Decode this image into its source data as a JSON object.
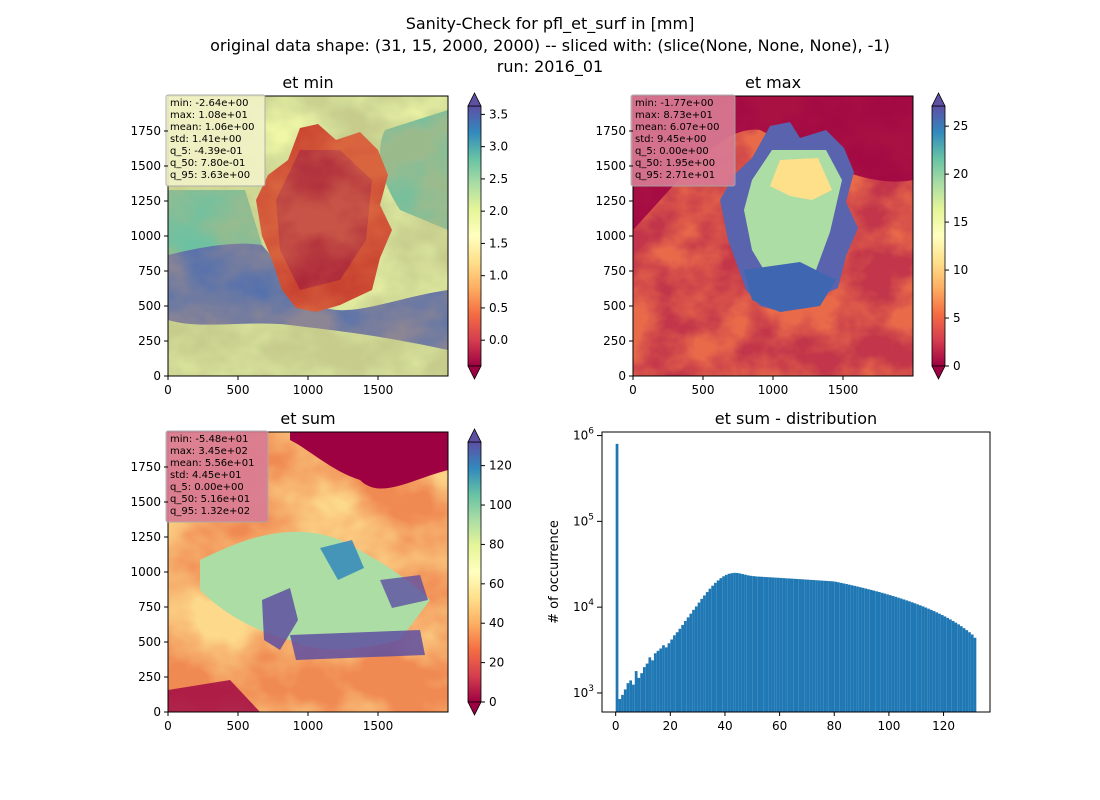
{
  "figure": {
    "title_lines": [
      "Sanity-Check for pfl_et_surf in [mm]",
      "original data shape: (31, 15, 2000, 2000) -- sliced with: (slice(None, None, None), -1)",
      "run: 2016_01"
    ]
  },
  "colormap": "Spectral",
  "colormap_stops": [
    "#9e0142",
    "#d53e4f",
    "#f46d43",
    "#fdae61",
    "#fee08b",
    "#ffffbf",
    "#e6f598",
    "#abdda4",
    "#66c2a5",
    "#3288bd",
    "#5e4fa2"
  ],
  "chart_data": [
    {
      "type": "heatmap",
      "title": "et min",
      "xlim": [
        0,
        2000
      ],
      "ylim": [
        0,
        2000
      ],
      "x_ticks": [
        0,
        500,
        1000,
        1500
      ],
      "y_ticks": [
        0,
        250,
        500,
        750,
        1000,
        1250,
        1500,
        1750
      ],
      "colorbar": {
        "vmin": -0.4,
        "vmax": 3.63,
        "ticks": [
          "0.0",
          "0.5",
          "1.0",
          "1.5",
          "2.0",
          "2.5",
          "3.0",
          "3.5"
        ],
        "tick_values": [
          0,
          0.5,
          1,
          1.5,
          2,
          2.5,
          3,
          3.5
        ],
        "extend": "both"
      },
      "stats": [
        "min: -2.64e+00",
        "max: 1.08e+01",
        "mean: 1.06e+00",
        "std: 1.41e+00",
        "q_5: -4.39e-01",
        "q_50: 7.80e-01",
        "q_95: 3.63e+00"
      ],
      "stats_box_color": "#f3f3c8"
    },
    {
      "type": "heatmap",
      "title": "et max",
      "xlim": [
        0,
        2000
      ],
      "ylim": [
        0,
        2000
      ],
      "x_ticks": [
        0,
        500,
        1000,
        1500
      ],
      "y_ticks": [
        0,
        250,
        500,
        750,
        1000,
        1250,
        1500,
        1750
      ],
      "colorbar": {
        "vmin": 0,
        "vmax": 27.1,
        "ticks": [
          "0",
          "5",
          "10",
          "15",
          "20",
          "25"
        ],
        "tick_values": [
          0,
          5,
          10,
          15,
          20,
          25
        ],
        "extend": "both"
      },
      "stats": [
        "min: -1.77e+00",
        "max: 8.73e+01",
        "mean: 6.07e+00",
        "std: 9.45e+00",
        "q_5: 0.00e+00",
        "q_50: 1.95e+00",
        "q_95: 2.71e+01"
      ],
      "stats_box_color": "#d97c95"
    },
    {
      "type": "heatmap",
      "title": "et sum",
      "xlim": [
        0,
        2000
      ],
      "ylim": [
        0,
        2000
      ],
      "x_ticks": [
        0,
        500,
        1000,
        1500
      ],
      "y_ticks": [
        0,
        250,
        500,
        750,
        1000,
        1250,
        1500,
        1750
      ],
      "colorbar": {
        "vmin": 0,
        "vmax": 132,
        "ticks": [
          "0",
          "20",
          "40",
          "60",
          "80",
          "100",
          "120"
        ],
        "tick_values": [
          0,
          20,
          40,
          60,
          80,
          100,
          120
        ],
        "extend": "both"
      },
      "stats": [
        "min: -5.48e+01",
        "max: 3.45e+02",
        "mean: 5.56e+01",
        "std: 4.45e+01",
        "q_5: 0.00e+00",
        "q_50: 5.16e+01",
        "q_95: 1.32e+02"
      ],
      "stats_box_color": "#d97c95"
    },
    {
      "type": "bar",
      "title": "et sum - distribution",
      "xlabel": "",
      "ylabel": "# of occurrence",
      "yscale": "log",
      "xlim": [
        -5,
        137
      ],
      "ylim": [
        600,
        1100000
      ],
      "x_ticks": [
        "0",
        "20",
        "40",
        "60",
        "80",
        "100",
        "120"
      ],
      "x_tick_values": [
        0,
        20,
        40,
        60,
        80,
        100,
        120
      ],
      "y_ticks": [
        "10^3",
        "10^4",
        "10^5",
        "10^6"
      ],
      "y_tick_values": [
        1000,
        10000,
        100000,
        1000000
      ],
      "bar_color": "#1f77b4",
      "bins": [
        0,
        1,
        2,
        3,
        4,
        5,
        6,
        7,
        8,
        9,
        10,
        11,
        12,
        13,
        14,
        15,
        16,
        17,
        18,
        19,
        20,
        21,
        22,
        23,
        24,
        25,
        26,
        27,
        28,
        29,
        30,
        31,
        32,
        33,
        34,
        35,
        36,
        37,
        38,
        39,
        40,
        41,
        42,
        43,
        44,
        45,
        46,
        47,
        48,
        49,
        50,
        51,
        52,
        53,
        54,
        55,
        56,
        57,
        58,
        59,
        60,
        61,
        62,
        63,
        64,
        65,
        66,
        67,
        68,
        69,
        70,
        71,
        72,
        73,
        74,
        75,
        76,
        77,
        78,
        79,
        80,
        81,
        82,
        83,
        84,
        85,
        86,
        87,
        88,
        89,
        90,
        91,
        92,
        93,
        94,
        95,
        96,
        97,
        98,
        99,
        100,
        101,
        102,
        103,
        104,
        105,
        106,
        107,
        108,
        109,
        110,
        111,
        112,
        113,
        114,
        115,
        116,
        117,
        118,
        119,
        120,
        121,
        122,
        123,
        124,
        125,
        126,
        127,
        128,
        129,
        130,
        131
      ],
      "values": [
        800000,
        850,
        950,
        1100,
        1300,
        1400,
        1250,
        1800,
        1500,
        1700,
        2000,
        2200,
        2600,
        2400,
        2900,
        3100,
        3300,
        3600,
        3400,
        3800,
        4200,
        4700,
        5100,
        5600,
        6200,
        6900,
        7600,
        8400,
        9300,
        10200,
        11300,
        12500,
        13700,
        15000,
        16400,
        17800,
        19200,
        20500,
        21800,
        22900,
        23800,
        24500,
        24900,
        25100,
        25000,
        24700,
        24300,
        23900,
        23500,
        23200,
        23000,
        22800,
        22700,
        22600,
        22500,
        22400,
        22300,
        22200,
        22100,
        22000,
        21900,
        21800,
        21700,
        21600,
        21500,
        21400,
        21300,
        21200,
        21100,
        21000,
        20900,
        20800,
        20700,
        20600,
        20500,
        20400,
        20300,
        20200,
        20100,
        20000,
        19800,
        19500,
        19200,
        18900,
        18600,
        18300,
        18000,
        17700,
        17400,
        17100,
        16800,
        16500,
        16200,
        15900,
        15600,
        15300,
        15000,
        14700,
        14400,
        14100,
        13800,
        13500,
        13200,
        12900,
        12600,
        12300,
        12000,
        11700,
        11400,
        11100,
        10800,
        10500,
        10200,
        9900,
        9600,
        9300,
        9000,
        8700,
        8400,
        8100,
        7800,
        7500,
        7200,
        6900,
        6600,
        6300,
        6000,
        5700,
        5400,
        5100,
        4800,
        4400
      ]
    }
  ]
}
